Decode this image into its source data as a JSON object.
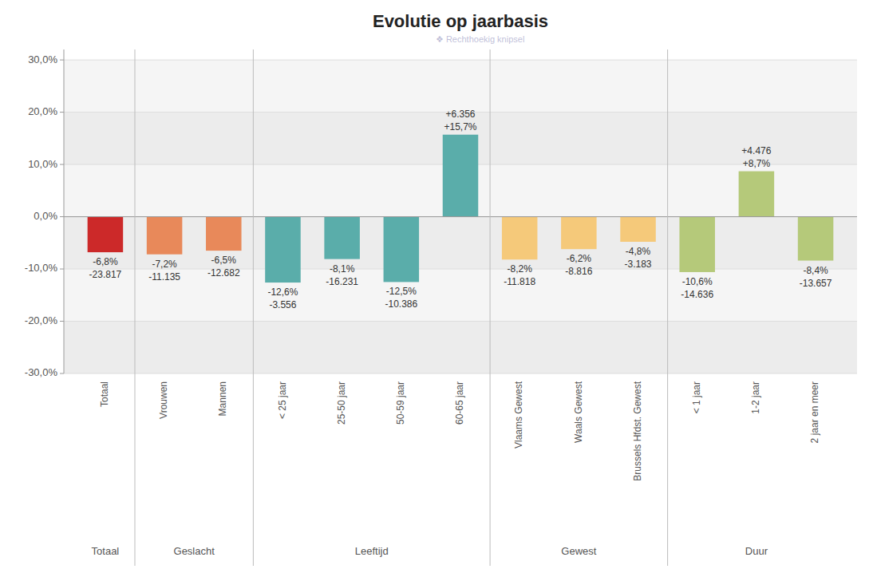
{
  "chart_data": {
    "type": "bar",
    "title": "Evolutie op jaarbasis",
    "categories": [
      "Totaal",
      "Vrouwen",
      "Mannen",
      "< 25 jaar",
      "25-50 jaar",
      "50-59 jaar",
      "60-65 jaar",
      "Vlaams Gewest",
      "Waals Gewest",
      "Brussels Hfdst. Gewest",
      "< 1 jaar",
      "1-2 jaar",
      "2 jaar en meer"
    ],
    "values": [
      -6.8,
      -7.2,
      -6.5,
      -12.6,
      -8.1,
      -12.5,
      15.7,
      -8.2,
      -6.2,
      -4.8,
      -10.6,
      8.7,
      -8.4
    ],
    "value_labels": [
      "-6,8%",
      "-7,2%",
      "-6,5%",
      "-12,6%",
      "-8,1%",
      "-12,5%",
      "+15,7%",
      "-8,2%",
      "-6,2%",
      "-4,8%",
      "-10,6%",
      "+8,7%",
      "-8,4%"
    ],
    "abs_labels": [
      "-23.817",
      "-11.135",
      "-12.682",
      "-3.556",
      "-16.231",
      "-10.386",
      "+6.356",
      "-11.818",
      "-8.816",
      "-3.183",
      "-14.636",
      "+4.476",
      "-13.657"
    ],
    "colors": [
      "#cc2929",
      "#e8895a",
      "#e8895a",
      "#5aadaa",
      "#5aadaa",
      "#5aadaa",
      "#5aadaa",
      "#f5c97a",
      "#f5c97a",
      "#f5c97a",
      "#b5c97a",
      "#b5c97a",
      "#b5c97a"
    ],
    "groups": [
      "Totaal",
      "Geslacht",
      "Geslacht",
      "Leeftijd",
      "Leeftijd",
      "Leeftijd",
      "Leeftijd",
      "Gewest",
      "Gewest",
      "Gewest",
      "Duur",
      "Duur",
      "Duur"
    ],
    "ylim": [
      -30,
      32
    ],
    "yticks": [
      {
        "value": -30,
        "label": "-30,0%"
      },
      {
        "value": -20,
        "label": "-20,0%"
      },
      {
        "value": -10,
        "label": "-10,0%"
      },
      {
        "value": 0,
        "label": "0,0%"
      },
      {
        "value": 10,
        "label": "10,0%"
      },
      {
        "value": 20,
        "label": "20,0%"
      },
      {
        "value": 30,
        "label": "30,0%"
      }
    ],
    "grid": true,
    "data_labels": true,
    "watermark": "❖  Rechthoekig knipsel"
  }
}
